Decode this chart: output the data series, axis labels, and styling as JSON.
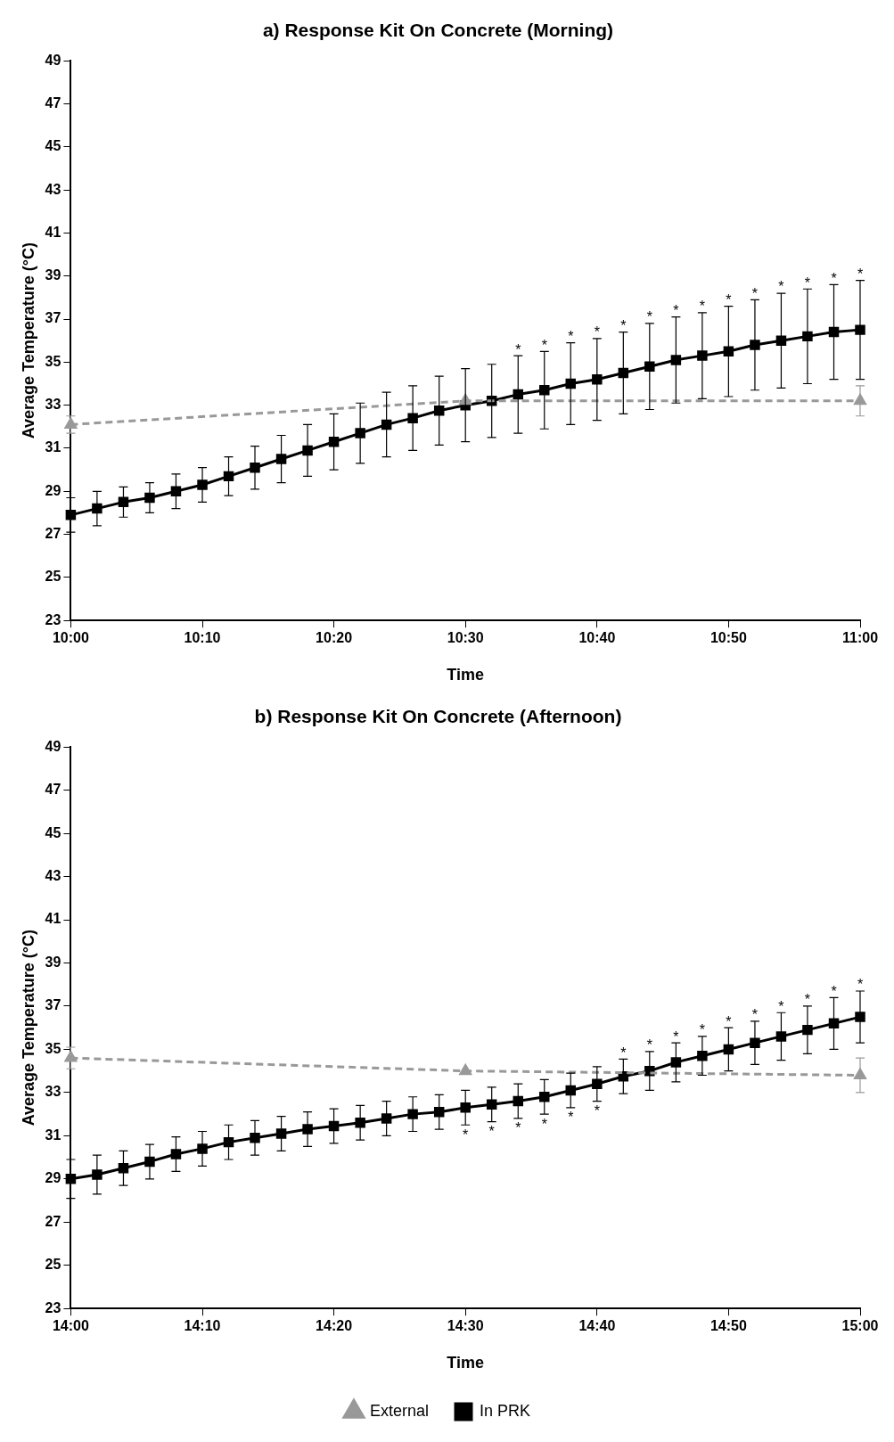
{
  "chart_data": [
    {
      "type": "line",
      "title": "a) Response Kit On Concrete (Morning)",
      "xlabel": "Time",
      "ylabel": "Average Temperature (°C)",
      "grid": false,
      "legend": false,
      "x": [
        10,
        10.0333,
        10.0667,
        10.1,
        10.1333,
        10.1667,
        10.2,
        10.2333,
        10.2667,
        10.3,
        10.3333,
        10.3667,
        10.4,
        10.4333,
        10.4667,
        10.5,
        10.5333,
        10.5667,
        10.6,
        10.6333,
        10.6667,
        10.7,
        10.7333,
        10.7667,
        10.8,
        10.8333,
        10.8667,
        10.9,
        10.9333,
        10.9667,
        11
      ],
      "xlim": [
        10,
        11
      ],
      "xticks": [
        {
          "value": 10,
          "label": "10:00"
        },
        {
          "value": 10.1667,
          "label": "10:10"
        },
        {
          "value": 10.3333,
          "label": "10:20"
        },
        {
          "value": 10.5,
          "label": "10:30"
        },
        {
          "value": 10.6667,
          "label": "10:40"
        },
        {
          "value": 10.8333,
          "label": "10:50"
        },
        {
          "value": 11,
          "label": "11:00"
        }
      ],
      "ylim": [
        23,
        49
      ],
      "yticks": [
        23,
        25,
        27,
        29,
        31,
        33,
        35,
        37,
        39,
        41,
        43,
        45,
        47,
        49
      ],
      "series": [
        {
          "color": "#999999",
          "marker": "triangle",
          "line_style": "dashed",
          "x": [
            10,
            10.5,
            11
          ],
          "values": [
            32.1,
            33.2,
            33.2
          ],
          "errors": [
            0.4,
            null,
            0.7
          ]
        },
        {
          "color": "#000000",
          "marker": "square",
          "line_style": "solid",
          "values": [
            27.9,
            28.2,
            28.5,
            28.7,
            29.0,
            29.3,
            29.7,
            30.1,
            30.5,
            30.9,
            31.3,
            31.7,
            32.1,
            32.4,
            32.75,
            33.0,
            33.2,
            33.5,
            33.7,
            34.0,
            34.2,
            34.5,
            34.8,
            35.1,
            35.3,
            35.5,
            35.8,
            36.0,
            36.2,
            36.4,
            36.5
          ],
          "errors": [
            0.8,
            0.8,
            0.7,
            0.7,
            0.8,
            0.8,
            0.9,
            1.0,
            1.1,
            1.2,
            1.3,
            1.4,
            1.5,
            1.5,
            1.6,
            1.7,
            1.7,
            1.8,
            1.8,
            1.9,
            1.9,
            1.9,
            2.0,
            2.0,
            2.0,
            2.1,
            2.1,
            2.2,
            2.2,
            2.2,
            2.3
          ]
        }
      ],
      "annotations": [
        {
          "text": "*",
          "x": 10.5667,
          "y": 35.3
        },
        {
          "text": "*",
          "x": 10.6,
          "y": 35.5
        },
        {
          "text": "*",
          "x": 10.6333,
          "y": 35.9
        },
        {
          "text": "*",
          "x": 10.6667,
          "y": 36.1
        },
        {
          "text": "*",
          "x": 10.7,
          "y": 36.4
        },
        {
          "text": "*",
          "x": 10.7333,
          "y": 36.8
        },
        {
          "text": "*",
          "x": 10.7667,
          "y": 37.1
        },
        {
          "text": "*",
          "x": 10.8,
          "y": 37.3
        },
        {
          "text": "*",
          "x": 10.8333,
          "y": 37.6
        },
        {
          "text": "*",
          "x": 10.8667,
          "y": 37.9
        },
        {
          "text": "*",
          "x": 10.9,
          "y": 38.2
        },
        {
          "text": "*",
          "x": 10.9333,
          "y": 38.4
        },
        {
          "text": "*",
          "x": 10.9667,
          "y": 38.6
        },
        {
          "text": "*",
          "x": 11,
          "y": 38.8
        }
      ]
    },
    {
      "type": "line",
      "title": "b) Response Kit On Concrete (Afternoon)",
      "xlabel": "Time",
      "ylabel": "Average Temperature (°C)",
      "grid": false,
      "legend": "bottom",
      "x": [
        14,
        14.0333,
        14.0667,
        14.1,
        14.1333,
        14.1667,
        14.2,
        14.2333,
        14.2667,
        14.3,
        14.3333,
        14.3667,
        14.4,
        14.4333,
        14.4667,
        14.5,
        14.5333,
        14.5667,
        14.6,
        14.6333,
        14.6667,
        14.7,
        14.7333,
        14.7667,
        14.8,
        14.8333,
        14.8667,
        14.9,
        14.9333,
        14.9667,
        15
      ],
      "xlim": [
        14,
        15
      ],
      "xticks": [
        {
          "value": 14,
          "label": "14:00"
        },
        {
          "value": 14.1667,
          "label": "14:10"
        },
        {
          "value": 14.3333,
          "label": "14:20"
        },
        {
          "value": 14.5,
          "label": "14:30"
        },
        {
          "value": 14.6667,
          "label": "14:40"
        },
        {
          "value": 14.8333,
          "label": "14:50"
        },
        {
          "value": 15,
          "label": "15:00"
        }
      ],
      "ylim": [
        23,
        49
      ],
      "yticks": [
        23,
        25,
        27,
        29,
        31,
        33,
        35,
        37,
        39,
        41,
        43,
        45,
        47,
        49
      ],
      "series": [
        {
          "name": "External",
          "color": "#999999",
          "marker": "triangle",
          "line_style": "dashed",
          "x": [
            14,
            14.5,
            15
          ],
          "values": [
            34.6,
            34.0,
            33.8
          ],
          "errors": [
            0.5,
            null,
            0.8
          ]
        },
        {
          "name": "In PRK",
          "color": "#000000",
          "marker": "square",
          "line_style": "solid",
          "values": [
            29.0,
            29.2,
            29.5,
            29.8,
            30.15,
            30.4,
            30.7,
            30.9,
            31.1,
            31.3,
            31.45,
            31.6,
            31.8,
            32.0,
            32.1,
            32.3,
            32.45,
            32.6,
            32.8,
            33.1,
            33.4,
            33.75,
            34.0,
            34.4,
            34.7,
            35.0,
            35.3,
            35.6,
            35.9,
            36.2,
            36.5
          ],
          "errors": [
            0.9,
            0.9,
            0.8,
            0.8,
            0.8,
            0.8,
            0.8,
            0.8,
            0.8,
            0.8,
            0.8,
            0.8,
            0.8,
            0.8,
            0.8,
            0.8,
            0.8,
            0.8,
            0.8,
            0.8,
            0.8,
            0.8,
            0.9,
            0.9,
            0.9,
            1.0,
            1.0,
            1.1,
            1.1,
            1.2,
            1.2
          ]
        }
      ],
      "annotations": [
        {
          "text": "*",
          "x": 14.5,
          "y": 31.5
        },
        {
          "text": "*",
          "x": 14.5333,
          "y": 31.65
        },
        {
          "text": "*",
          "x": 14.5667,
          "y": 31.8
        },
        {
          "text": "*",
          "x": 14.6,
          "y": 32.0
        },
        {
          "text": "*",
          "x": 14.6333,
          "y": 32.3
        },
        {
          "text": "*",
          "x": 14.6667,
          "y": 32.6
        },
        {
          "text": "*",
          "x": 14.7,
          "y": 34.55
        },
        {
          "text": "*",
          "x": 14.7333,
          "y": 34.9
        },
        {
          "text": "*",
          "x": 14.7667,
          "y": 35.3
        },
        {
          "text": "*",
          "x": 14.8,
          "y": 35.6
        },
        {
          "text": "*",
          "x": 14.8333,
          "y": 36.0
        },
        {
          "text": "*",
          "x": 14.8667,
          "y": 36.3
        },
        {
          "text": "*",
          "x": 14.9,
          "y": 36.7
        },
        {
          "text": "*",
          "x": 14.9333,
          "y": 37.0
        },
        {
          "text": "*",
          "x": 14.9667,
          "y": 37.4
        },
        {
          "text": "*",
          "x": 15,
          "y": 37.7
        }
      ]
    }
  ]
}
